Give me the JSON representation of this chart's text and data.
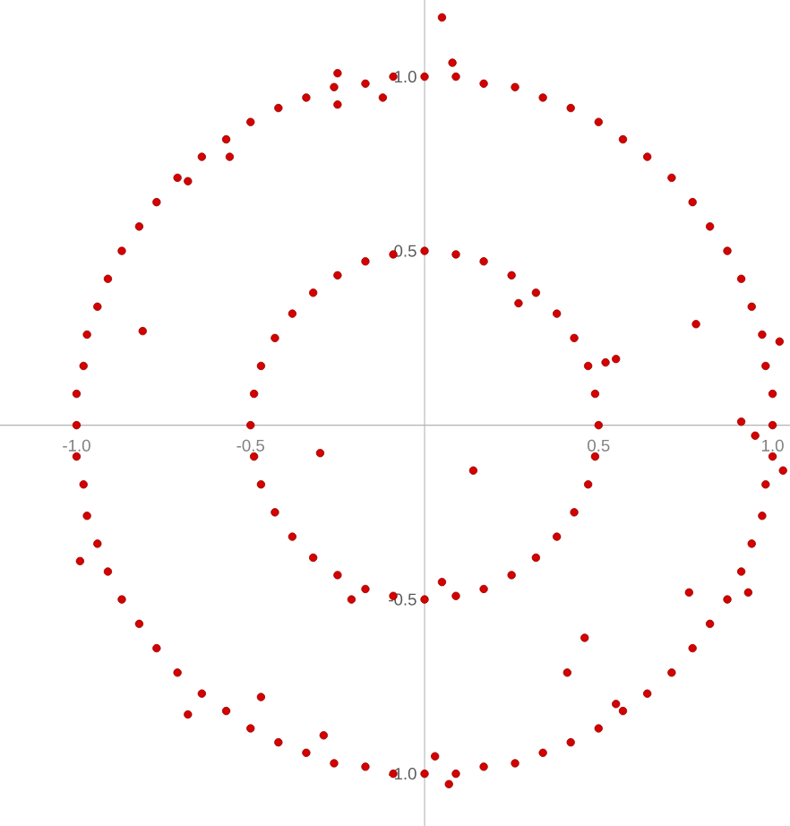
{
  "chart_data": {
    "type": "scatter",
    "marker": "circle",
    "grid": false,
    "xlim": [
      -1.22,
      1.05
    ],
    "ylim": [
      -1.15,
      1.22
    ],
    "xticks": [
      {
        "value": -1.0,
        "label": "-1.0"
      },
      {
        "value": -0.5,
        "label": "-0.5"
      },
      {
        "value": 0.5,
        "label": "0.5"
      },
      {
        "value": 1.0,
        "label": "1.0"
      }
    ],
    "yticks": [
      {
        "value": -1.0,
        "label": "-1.0"
      },
      {
        "value": -0.5,
        "label": "-0.5"
      },
      {
        "value": 0.5,
        "label": "0.5"
      },
      {
        "value": 1.0,
        "label": "1.0"
      }
    ],
    "series": [
      {
        "color": "#d40000",
        "x": [
          1.0,
          1.0,
          0.98,
          0.97,
          0.94,
          0.91,
          0.87,
          0.82,
          0.77,
          0.71,
          0.64,
          0.57,
          0.5,
          0.42,
          0.34,
          0.26,
          0.17,
          0.09,
          0.0,
          -0.09,
          -0.17,
          -0.26,
          -0.34,
          -0.42,
          -0.5,
          -0.57,
          -0.64,
          -0.71,
          -0.77,
          -0.82,
          -0.87,
          -0.91,
          -0.94,
          -0.97,
          -0.98,
          -1.0,
          -1.0,
          -1.0,
          -0.98,
          -0.97,
          -0.94,
          -0.91,
          -0.87,
          -0.82,
          -0.77,
          -0.71,
          -0.64,
          -0.57,
          -0.5,
          -0.42,
          -0.34,
          -0.26,
          -0.17,
          -0.09,
          0.0,
          0.09,
          0.17,
          0.26,
          0.34,
          0.42,
          0.5,
          0.57,
          0.64,
          0.71,
          0.77,
          0.82,
          0.87,
          0.91,
          0.94,
          0.97,
          0.98,
          1.0,
          0.5,
          0.49,
          0.47,
          0.43,
          0.38,
          0.32,
          0.25,
          0.17,
          0.09,
          0.0,
          -0.09,
          -0.17,
          -0.25,
          -0.32,
          -0.38,
          -0.43,
          -0.47,
          -0.49,
          -0.5,
          -0.49,
          -0.47,
          -0.43,
          -0.38,
          -0.32,
          -0.25,
          -0.17,
          -0.09,
          0.0,
          0.09,
          0.17,
          0.25,
          0.32,
          0.38,
          0.43,
          0.47,
          0.49,
          0.05,
          0.08,
          -0.25,
          -0.25,
          -0.12,
          -0.56,
          -0.68,
          -0.81,
          0.27,
          0.52,
          0.55,
          -0.3,
          0.14,
          0.91,
          0.95,
          1.03,
          1.02,
          -0.99,
          -0.47,
          -0.29,
          -0.68,
          0.46,
          0.41,
          0.55,
          0.76,
          0.93,
          0.05,
          -0.21,
          0.03,
          0.07,
          0.78
        ],
        "values": [
          0.0,
          0.09,
          0.17,
          0.26,
          0.34,
          0.42,
          0.5,
          0.57,
          0.64,
          0.71,
          0.77,
          0.82,
          0.87,
          0.91,
          0.94,
          0.97,
          0.98,
          1.0,
          1.0,
          1.0,
          0.98,
          0.97,
          0.94,
          0.91,
          0.87,
          0.82,
          0.77,
          0.71,
          0.64,
          0.57,
          0.5,
          0.42,
          0.34,
          0.26,
          0.17,
          0.09,
          0.0,
          -0.09,
          -0.17,
          -0.26,
          -0.34,
          -0.42,
          -0.5,
          -0.57,
          -0.64,
          -0.71,
          -0.77,
          -0.82,
          -0.87,
          -0.91,
          -0.94,
          -0.97,
          -0.98,
          -1.0,
          -1.0,
          -1.0,
          -0.98,
          -0.97,
          -0.94,
          -0.91,
          -0.87,
          -0.82,
          -0.77,
          -0.71,
          -0.64,
          -0.57,
          -0.5,
          -0.42,
          -0.34,
          -0.26,
          -0.17,
          -0.09,
          0.0,
          0.09,
          0.17,
          0.25,
          0.32,
          0.38,
          0.43,
          0.47,
          0.49,
          0.5,
          0.49,
          0.47,
          0.43,
          0.38,
          0.32,
          0.25,
          0.17,
          0.09,
          0.0,
          -0.09,
          -0.17,
          -0.25,
          -0.32,
          -0.38,
          -0.43,
          -0.47,
          -0.49,
          -0.5,
          -0.49,
          -0.47,
          -0.43,
          -0.38,
          -0.32,
          -0.25,
          -0.17,
          -0.09,
          1.17,
          1.04,
          1.01,
          0.92,
          0.94,
          0.77,
          0.7,
          0.27,
          0.35,
          0.18,
          0.19,
          -0.08,
          -0.13,
          0.01,
          -0.03,
          -0.13,
          0.24,
          -0.39,
          -0.78,
          -0.89,
          -0.83,
          -0.61,
          -0.71,
          -0.8,
          -0.48,
          -0.48,
          -0.45,
          -0.5,
          -0.95,
          -1.03,
          0.29
        ]
      }
    ]
  }
}
